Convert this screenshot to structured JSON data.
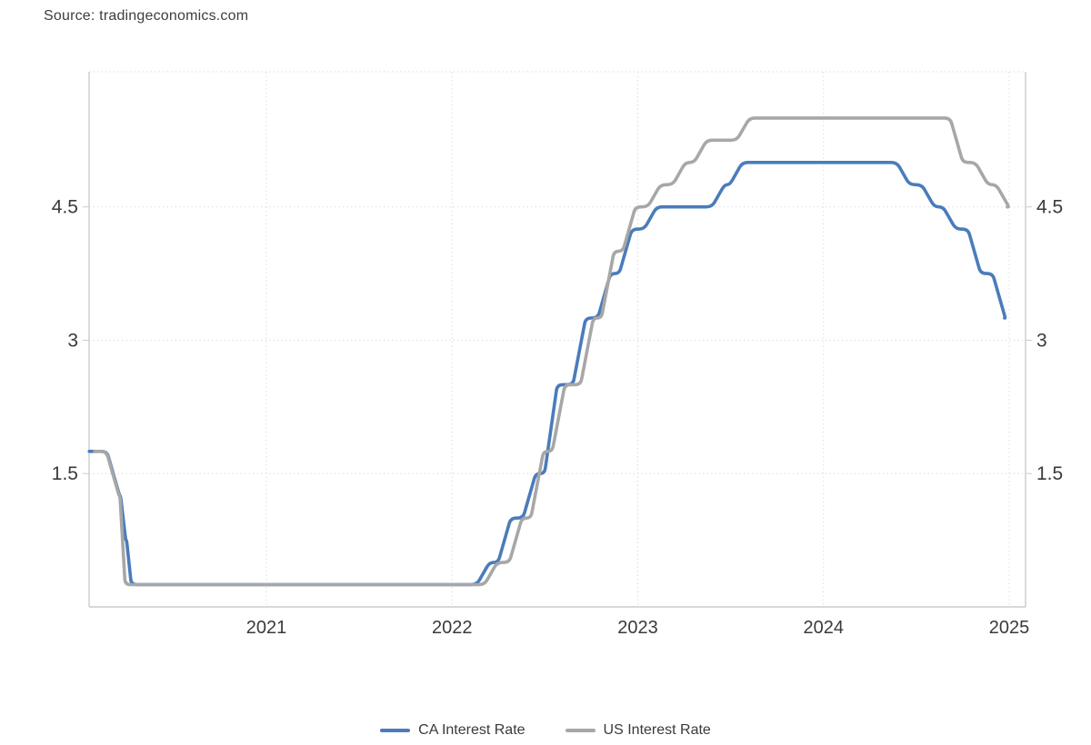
{
  "source": {
    "label": "Source: tradingeconomics.com"
  },
  "chart_data": {
    "type": "line",
    "title": "",
    "xlabel": "",
    "ylabel": "",
    "x_axis": {
      "unit": "year",
      "range": [
        2020.045,
        2025.088
      ],
      "ticks": [
        2021,
        2022,
        2023,
        2024,
        2025
      ]
    },
    "y_axis": {
      "unit": "percent",
      "range": [
        0,
        6.02
      ],
      "ticks": [
        1.5,
        3,
        4.5
      ],
      "label_sides": "both"
    },
    "grid": "dotted",
    "legend_position": "bottom",
    "style": {
      "axis_color": "#cccccc",
      "grid_color": "#dddddd",
      "label_color": "#3a3a3a",
      "background": "#ffffff"
    },
    "series": [
      {
        "name": "CA Interest Rate",
        "color": "#4a7cba",
        "end": 2024.975,
        "points": [
          [
            2020.046,
            1.75
          ],
          [
            2020.175,
            1.25
          ],
          [
            2020.208,
            0.75
          ],
          [
            2020.238,
            0.25
          ],
          [
            2022.167,
            0.5
          ],
          [
            2022.282,
            1.0
          ],
          [
            2022.416,
            1.5
          ],
          [
            2022.532,
            2.5
          ],
          [
            2022.685,
            3.25
          ],
          [
            2022.819,
            3.75
          ],
          [
            2022.934,
            4.25
          ],
          [
            2023.068,
            4.5
          ],
          [
            2023.433,
            4.75
          ],
          [
            2023.529,
            5.0
          ],
          [
            2024.429,
            4.75
          ],
          [
            2024.563,
            4.5
          ],
          [
            2024.678,
            4.25
          ],
          [
            2024.812,
            3.75
          ],
          [
            2024.945,
            3.25
          ]
        ]
      },
      {
        "name": "US Interest Rate",
        "color": "#a7a7a7",
        "end": 2024.99,
        "points": [
          [
            2020.075,
            1.75
          ],
          [
            2020.172,
            1.25
          ],
          [
            2020.205,
            0.25
          ],
          [
            2022.208,
            0.5
          ],
          [
            2022.342,
            1.0
          ],
          [
            2022.458,
            1.75
          ],
          [
            2022.573,
            2.5
          ],
          [
            2022.726,
            3.25
          ],
          [
            2022.838,
            4.0
          ],
          [
            2022.953,
            4.5
          ],
          [
            2023.088,
            4.75
          ],
          [
            2023.222,
            5.0
          ],
          [
            2023.337,
            5.25
          ],
          [
            2023.567,
            5.5
          ],
          [
            2024.716,
            5.0
          ],
          [
            2024.852,
            4.75
          ],
          [
            2024.964,
            4.5
          ]
        ]
      }
    ]
  }
}
